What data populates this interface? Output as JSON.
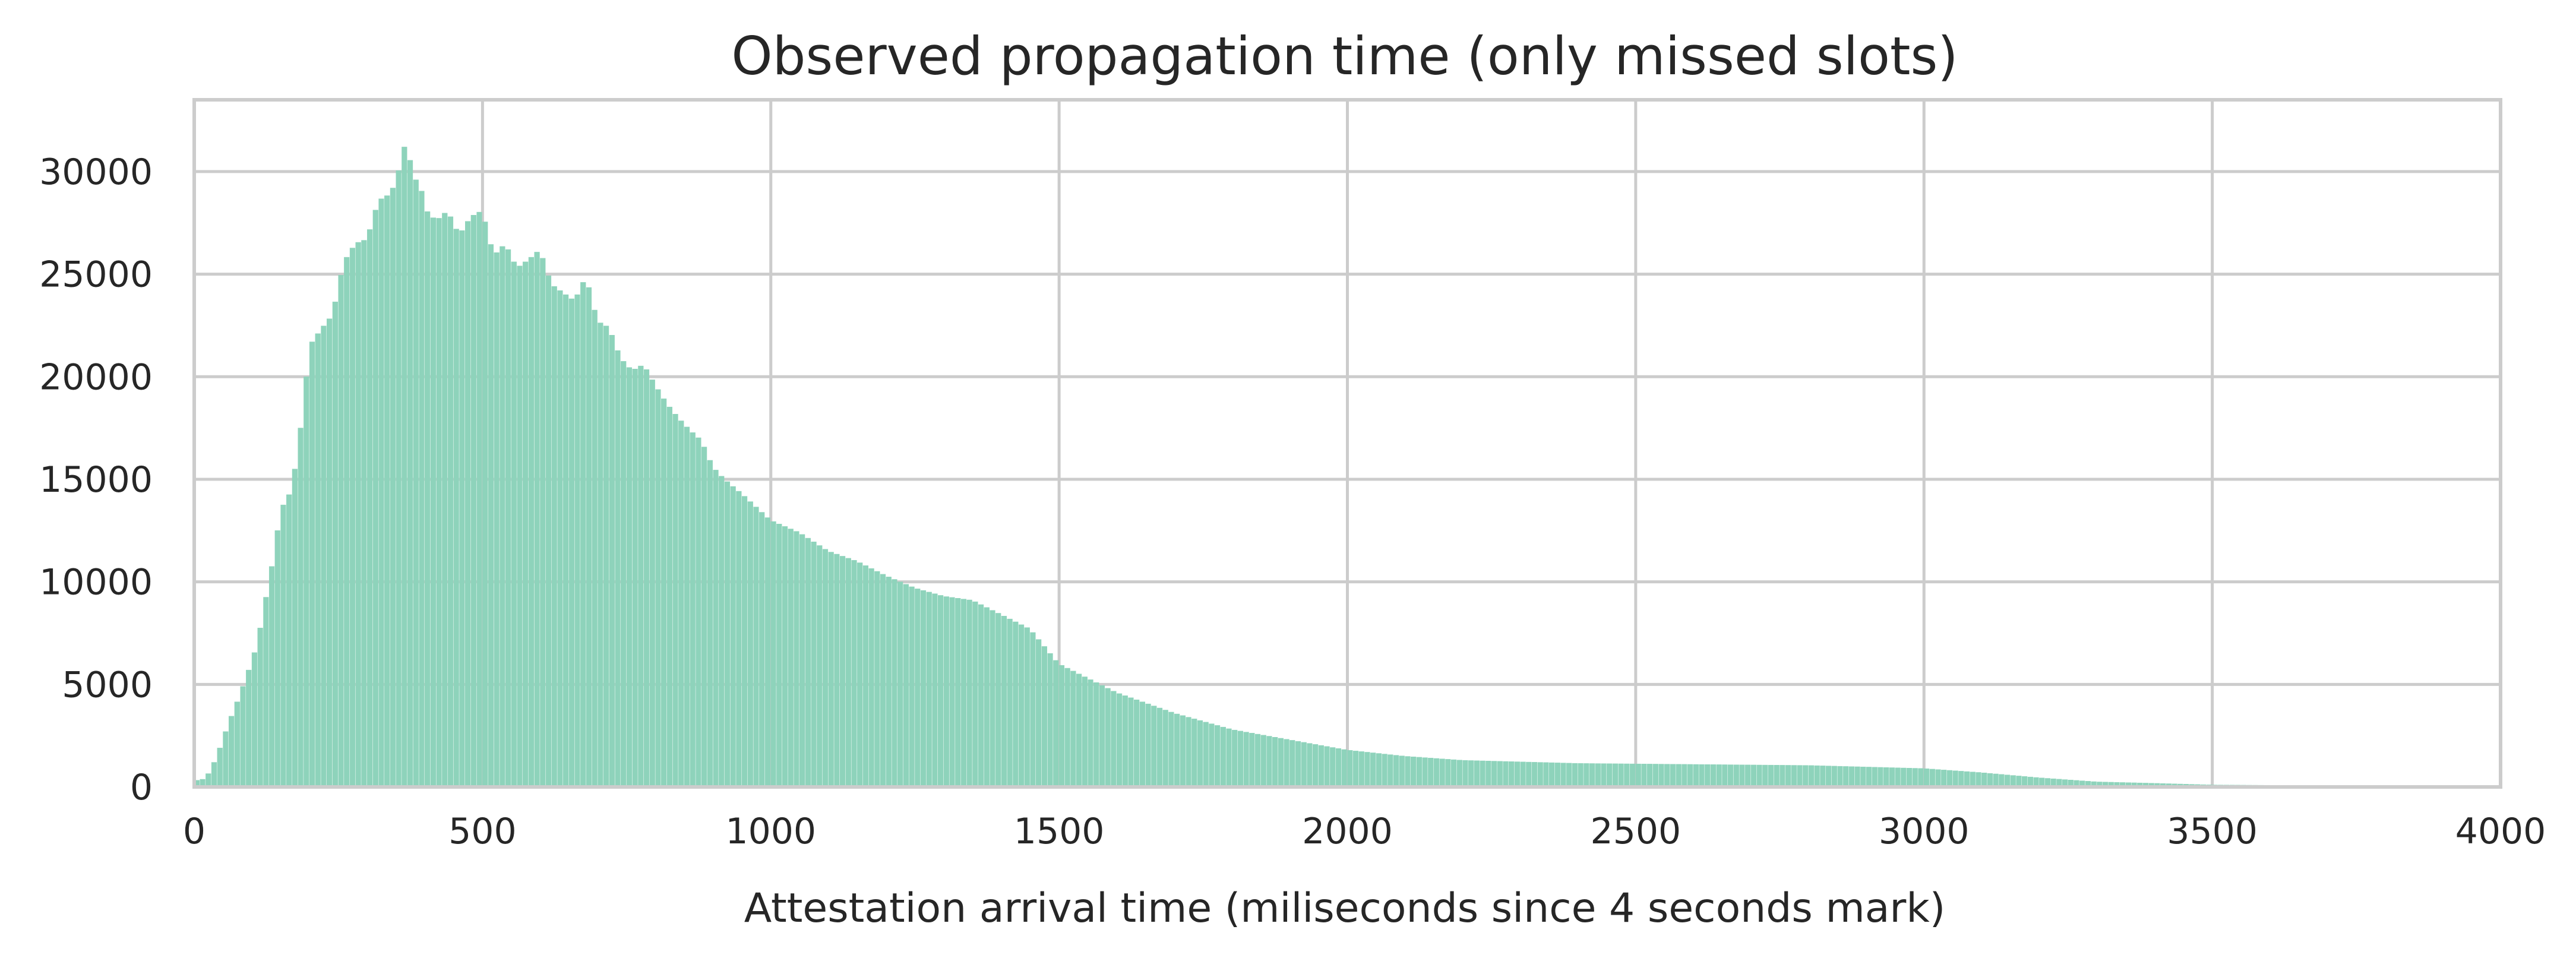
{
  "chart_data": {
    "type": "bar",
    "title": "Observed propagation time (only missed slots)",
    "xlabel": "Attestation arrival time (miliseconds since 4 seconds mark)",
    "ylabel": "",
    "xlim": [
      0,
      4000
    ],
    "ylim": [
      0,
      33500
    ],
    "xticks": [
      0,
      500,
      1000,
      1500,
      2000,
      2500,
      3000,
      3500,
      4000
    ],
    "yticks": [
      0,
      5000,
      10000,
      15000,
      20000,
      25000,
      30000
    ],
    "grid": true,
    "legend": "none",
    "bar_color": "#8ed3bb",
    "bin_width": 10,
    "anchors": [
      [
        0,
        300
      ],
      [
        20,
        400
      ],
      [
        30,
        900
      ],
      [
        40,
        1500
      ],
      [
        50,
        2300
      ],
      [
        60,
        3100
      ],
      [
        70,
        3800
      ],
      [
        80,
        4500
      ],
      [
        90,
        5300
      ],
      [
        100,
        6100
      ],
      [
        110,
        7000
      ],
      [
        120,
        8500
      ],
      [
        130,
        10000
      ],
      [
        140,
        11500
      ],
      [
        150,
        13500
      ],
      [
        160,
        14000
      ],
      [
        170,
        14500
      ],
      [
        180,
        16500
      ],
      [
        190,
        18500
      ],
      [
        200,
        21500
      ],
      [
        220,
        22300
      ],
      [
        240,
        23000
      ],
      [
        260,
        25600
      ],
      [
        280,
        26500
      ],
      [
        300,
        26700
      ],
      [
        320,
        28600
      ],
      [
        340,
        28900
      ],
      [
        350,
        29500
      ],
      [
        360,
        30600
      ],
      [
        370,
        31800
      ],
      [
        380,
        29300
      ],
      [
        390,
        29900
      ],
      [
        400,
        28200
      ],
      [
        420,
        27600
      ],
      [
        440,
        28100
      ],
      [
        460,
        26900
      ],
      [
        480,
        27800
      ],
      [
        500,
        28100
      ],
      [
        520,
        25900
      ],
      [
        540,
        26500
      ],
      [
        560,
        25300
      ],
      [
        580,
        25700
      ],
      [
        600,
        26200
      ],
      [
        620,
        24500
      ],
      [
        640,
        24100
      ],
      [
        660,
        23700
      ],
      [
        680,
        24900
      ],
      [
        700,
        22700
      ],
      [
        720,
        22400
      ],
      [
        740,
        20900
      ],
      [
        760,
        20300
      ],
      [
        780,
        20600
      ],
      [
        800,
        19600
      ],
      [
        820,
        18700
      ],
      [
        840,
        18000
      ],
      [
        860,
        17400
      ],
      [
        880,
        16900
      ],
      [
        900,
        15600
      ],
      [
        920,
        15000
      ],
      [
        950,
        14300
      ],
      [
        1000,
        13000
      ],
      [
        1050,
        12400
      ],
      [
        1100,
        11500
      ],
      [
        1150,
        11000
      ],
      [
        1200,
        10300
      ],
      [
        1250,
        9700
      ],
      [
        1300,
        9300
      ],
      [
        1350,
        9100
      ],
      [
        1400,
        8400
      ],
      [
        1450,
        7700
      ],
      [
        1500,
        6000
      ],
      [
        1550,
        5300
      ],
      [
        1600,
        4600
      ],
      [
        1650,
        4100
      ],
      [
        1700,
        3600
      ],
      [
        1800,
        2800
      ],
      [
        1900,
        2300
      ],
      [
        2000,
        1800
      ],
      [
        2100,
        1500
      ],
      [
        2200,
        1300
      ],
      [
        2400,
        1150
      ],
      [
        2600,
        1100
      ],
      [
        2800,
        1050
      ],
      [
        3000,
        900
      ],
      [
        3100,
        700
      ],
      [
        3200,
        450
      ],
      [
        3300,
        250
      ],
      [
        3400,
        180
      ],
      [
        3500,
        100
      ],
      [
        3700,
        60
      ],
      [
        3900,
        30
      ]
    ]
  }
}
